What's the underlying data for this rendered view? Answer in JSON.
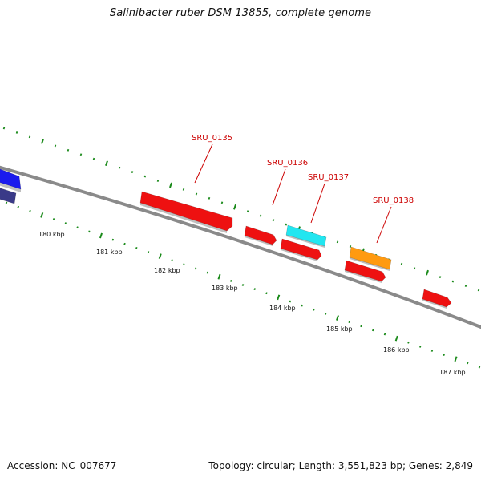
{
  "title": "Salinibacter ruber DSM 13855, complete genome",
  "footer": {
    "accession": "Accession: NC_007677",
    "summary": "Topology: circular; Length: 3,551,823 bp; Genes: 2,849"
  },
  "scale": {
    "unit": "kbp",
    "tick_labels": [
      "180 kbp",
      "181 kbp",
      "182 kbp",
      "183 kbp",
      "184 kbp",
      "185 kbp",
      "186 kbp",
      "187 kbp"
    ]
  },
  "colors": {
    "backbone": "#8a8a8a",
    "tick_green": "#1a8a1a",
    "label_red": "#cc0000",
    "gene_red": "#ee1111",
    "gene_blue": "#1a1aee",
    "gene_navy": "#3a3a88",
    "gene_cyan": "#22e6f0",
    "gene_orange": "#ff9a10"
  },
  "gene_labels": [
    "SRU_0135",
    "SRU_0136",
    "SRU_0137",
    "SRU_0138"
  ],
  "features": [
    {
      "name": "blue-gene-outer",
      "color": "gene_blue"
    },
    {
      "name": "navy-gene-inner",
      "color": "gene_navy"
    },
    {
      "name": "SRU_0135-gene",
      "color": "gene_red",
      "label": "SRU_0135"
    },
    {
      "name": "SRU_0136-gene",
      "color": "gene_red",
      "label": "SRU_0136"
    },
    {
      "name": "SRU_0137-gene",
      "color": "gene_cyan",
      "label": "SRU_0137"
    },
    {
      "name": "inner-red-gene-b",
      "color": "gene_red"
    },
    {
      "name": "SRU_0138-gene",
      "color": "gene_orange",
      "label": "SRU_0138"
    },
    {
      "name": "inner-red-gene-c",
      "color": "gene_red"
    },
    {
      "name": "inner-red-gene-d",
      "color": "gene_red"
    }
  ]
}
